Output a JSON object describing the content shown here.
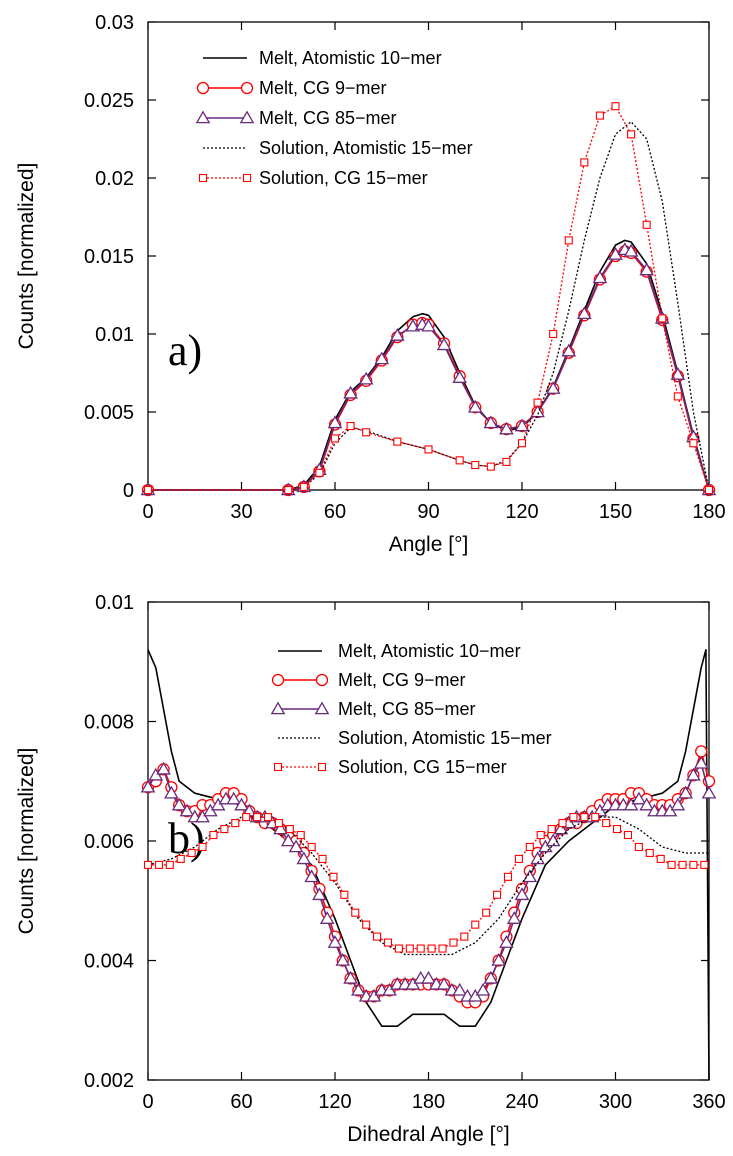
{
  "chart_data": [
    {
      "type": "line",
      "panel_label": "a)",
      "xlabel": "Angle [°]",
      "ylabel": "Counts [normalized]",
      "xlim": [
        0,
        180
      ],
      "ylim": [
        0,
        0.03
      ],
      "xticks": [
        0,
        30,
        60,
        90,
        120,
        150,
        180
      ],
      "yticks": [
        0,
        0.005,
        0.01,
        0.015,
        0.02,
        0.025,
        0.03
      ],
      "ytick_labels": [
        "0",
        "0.005",
        "0.01",
        "0.015",
        "0.02",
        "0.025",
        "0.03"
      ],
      "grid": false,
      "legend_position": "top-left",
      "series": [
        {
          "name": "Melt, Atomistic 10−mer",
          "color": "#000000",
          "style": "solid",
          "marker": "none",
          "x": [
            0,
            45,
            50,
            55,
            60,
            65,
            70,
            75,
            80,
            85,
            88,
            90,
            95,
            100,
            105,
            110,
            115,
            120,
            125,
            130,
            135,
            140,
            145,
            150,
            153,
            155,
            160,
            165,
            170,
            175,
            180
          ],
          "y": [
            0,
            0,
            0.0003,
            0.0015,
            0.0045,
            0.0063,
            0.0072,
            0.0085,
            0.0102,
            0.0111,
            0.0113,
            0.0112,
            0.0098,
            0.0075,
            0.0054,
            0.0043,
            0.0038,
            0.004,
            0.005,
            0.0066,
            0.009,
            0.0115,
            0.014,
            0.0157,
            0.016,
            0.0159,
            0.0145,
            0.0113,
            0.0075,
            0.0035,
            0
          ]
        },
        {
          "name": "Melt, CG 9−mer",
          "color": "#ff0000",
          "style": "solid",
          "marker": "circle",
          "x": [
            0,
            45,
            50,
            55,
            60,
            65,
            70,
            75,
            80,
            85,
            88,
            90,
            95,
            100,
            105,
            110,
            115,
            120,
            125,
            130,
            135,
            140,
            145,
            150,
            153,
            155,
            160,
            165,
            170,
            175,
            180
          ],
          "y": [
            0,
            0,
            0.0002,
            0.0012,
            0.0042,
            0.0061,
            0.007,
            0.0083,
            0.0098,
            0.0106,
            0.0107,
            0.0106,
            0.0094,
            0.0073,
            0.0053,
            0.0043,
            0.0039,
            0.0041,
            0.005,
            0.0065,
            0.0088,
            0.0112,
            0.0135,
            0.015,
            0.0153,
            0.0152,
            0.014,
            0.0109,
            0.0073,
            0.0033,
            0
          ]
        },
        {
          "name": "Melt, CG 85−mer",
          "color": "#6a2a7a",
          "style": "solid",
          "marker": "triangle",
          "x": [
            0,
            45,
            50,
            55,
            60,
            65,
            70,
            75,
            80,
            85,
            88,
            90,
            95,
            100,
            105,
            110,
            115,
            120,
            125,
            130,
            135,
            140,
            145,
            150,
            153,
            155,
            160,
            165,
            170,
            175,
            180
          ],
          "y": [
            0,
            0,
            0.0002,
            0.0013,
            0.0043,
            0.0062,
            0.0071,
            0.0084,
            0.0099,
            0.0105,
            0.0106,
            0.0105,
            0.0093,
            0.0072,
            0.0053,
            0.0043,
            0.0039,
            0.0041,
            0.005,
            0.0065,
            0.0089,
            0.0113,
            0.0136,
            0.0151,
            0.0154,
            0.0153,
            0.0141,
            0.011,
            0.0074,
            0.0034,
            0
          ]
        },
        {
          "name": "Solution, Atomistic 15−mer",
          "color": "#000000",
          "style": "dotted",
          "marker": "none",
          "x": [
            0,
            45,
            50,
            55,
            60,
            65,
            70,
            80,
            90,
            100,
            105,
            110,
            115,
            120,
            125,
            130,
            135,
            140,
            145,
            150,
            155,
            160,
            165,
            170,
            175,
            180
          ],
          "y": [
            0,
            0,
            0.0002,
            0.001,
            0.003,
            0.004,
            0.0038,
            0.0031,
            0.0026,
            0.0019,
            0.0016,
            0.0015,
            0.0019,
            0.003,
            0.0048,
            0.0075,
            0.0115,
            0.016,
            0.02,
            0.0228,
            0.0236,
            0.0225,
            0.0185,
            0.012,
            0.005,
            0
          ]
        },
        {
          "name": "Solution, CG 15−mer",
          "color": "#ff0000",
          "style": "dotted",
          "marker": "square",
          "x": [
            0,
            45,
            50,
            55,
            60,
            65,
            70,
            80,
            90,
            100,
            105,
            110,
            115,
            120,
            125,
            130,
            135,
            140,
            145,
            150,
            155,
            160,
            165,
            170,
            175,
            180
          ],
          "y": [
            0,
            0,
            0.0002,
            0.0011,
            0.0033,
            0.0041,
            0.0037,
            0.0031,
            0.0026,
            0.0019,
            0.0016,
            0.0015,
            0.0018,
            0.003,
            0.0056,
            0.01,
            0.016,
            0.021,
            0.024,
            0.0246,
            0.0228,
            0.017,
            0.011,
            0.006,
            0.003,
            0
          ]
        }
      ]
    },
    {
      "type": "line",
      "panel_label": "b)",
      "xlabel": "Dihedral Angle [°]",
      "ylabel": "Counts [normalized]",
      "xlim": [
        0,
        360
      ],
      "ylim": [
        0.002,
        0.01
      ],
      "xticks": [
        0,
        60,
        120,
        180,
        240,
        300,
        360
      ],
      "yticks": [
        0.002,
        0.004,
        0.006,
        0.008,
        0.01
      ],
      "ytick_labels": [
        "0.002",
        "0.004",
        "0.006",
        "0.008",
        "0.01"
      ],
      "grid": false,
      "legend_position": "top-right",
      "series": [
        {
          "name": "Melt, Atomistic 10−mer",
          "color": "#000000",
          "style": "solid",
          "marker": "none",
          "x": [
            0,
            5,
            10,
            15,
            20,
            30,
            45,
            60,
            75,
            90,
            105,
            120,
            130,
            140,
            150,
            160,
            170,
            180,
            190,
            200,
            210,
            220,
            230,
            240,
            255,
            270,
            285,
            300,
            315,
            330,
            340,
            345,
            350,
            355,
            358,
            360
          ],
          "y": [
            0.0092,
            0.0089,
            0.0082,
            0.0075,
            0.007,
            0.0068,
            0.0067,
            0.0066,
            0.0063,
            0.006,
            0.0056,
            0.0047,
            0.004,
            0.0033,
            0.0029,
            0.0029,
            0.0031,
            0.0031,
            0.0031,
            0.0029,
            0.0029,
            0.0033,
            0.004,
            0.0047,
            0.0056,
            0.006,
            0.0063,
            0.0066,
            0.0067,
            0.0068,
            0.007,
            0.0075,
            0.0082,
            0.0089,
            0.0092,
            0.002
          ]
        },
        {
          "name": "Melt, CG 9−mer",
          "color": "#ff0000",
          "style": "solid",
          "marker": "circle",
          "x": [
            0,
            5,
            10,
            15,
            20,
            25,
            30,
            35,
            40,
            45,
            50,
            55,
            60,
            65,
            70,
            75,
            80,
            85,
            90,
            95,
            100,
            105,
            110,
            115,
            120,
            125,
            130,
            135,
            140,
            145,
            150,
            155,
            160,
            165,
            170,
            175,
            180,
            185,
            190,
            195,
            200,
            205,
            210,
            215,
            220,
            225,
            230,
            235,
            240,
            245,
            250,
            255,
            260,
            265,
            270,
            275,
            280,
            285,
            290,
            295,
            300,
            305,
            310,
            315,
            320,
            325,
            330,
            335,
            340,
            345,
            350,
            355,
            360
          ],
          "y": [
            0.0069,
            0.007,
            0.0072,
            0.0069,
            0.0066,
            0.0065,
            0.0065,
            0.0066,
            0.0066,
            0.0067,
            0.0068,
            0.0068,
            0.0067,
            0.0065,
            0.0064,
            0.0063,
            0.0063,
            0.0062,
            0.0061,
            0.006,
            0.0058,
            0.0055,
            0.0052,
            0.0048,
            0.0044,
            0.004,
            0.0037,
            0.0035,
            0.0034,
            0.0034,
            0.0035,
            0.0035,
            0.0036,
            0.0036,
            0.0036,
            0.0036,
            0.0036,
            0.0036,
            0.0036,
            0.0035,
            0.0034,
            0.0033,
            0.0033,
            0.0034,
            0.0037,
            0.004,
            0.0044,
            0.0048,
            0.0052,
            0.0055,
            0.0058,
            0.006,
            0.0061,
            0.0062,
            0.0063,
            0.0063,
            0.0064,
            0.0065,
            0.0066,
            0.0067,
            0.0067,
            0.0067,
            0.0068,
            0.0068,
            0.0067,
            0.0066,
            0.0066,
            0.0066,
            0.0067,
            0.0068,
            0.0071,
            0.0075,
            0.007
          ]
        },
        {
          "name": "Melt, CG 85−mer",
          "color": "#6a2a7a",
          "style": "solid",
          "marker": "triangle",
          "x": [
            0,
            5,
            10,
            15,
            20,
            25,
            30,
            35,
            40,
            45,
            50,
            55,
            60,
            65,
            70,
            75,
            80,
            85,
            90,
            95,
            100,
            105,
            110,
            115,
            120,
            125,
            130,
            135,
            140,
            145,
            150,
            155,
            160,
            165,
            170,
            175,
            180,
            185,
            190,
            195,
            200,
            205,
            210,
            215,
            220,
            225,
            230,
            235,
            240,
            245,
            250,
            255,
            260,
            265,
            270,
            275,
            280,
            285,
            290,
            295,
            300,
            305,
            310,
            315,
            320,
            325,
            330,
            335,
            340,
            345,
            350,
            355,
            360
          ],
          "y": [
            0.0069,
            0.0071,
            0.0072,
            0.0068,
            0.0066,
            0.0065,
            0.0064,
            0.0064,
            0.0065,
            0.0066,
            0.0067,
            0.0067,
            0.0066,
            0.0065,
            0.0064,
            0.0064,
            0.0063,
            0.0062,
            0.006,
            0.0059,
            0.0057,
            0.0054,
            0.0051,
            0.0047,
            0.0043,
            0.004,
            0.0037,
            0.0035,
            0.0034,
            0.0034,
            0.0035,
            0.0035,
            0.0036,
            0.0036,
            0.0036,
            0.0037,
            0.0037,
            0.0036,
            0.0036,
            0.0035,
            0.0035,
            0.0034,
            0.0034,
            0.0035,
            0.0037,
            0.004,
            0.0043,
            0.0047,
            0.0051,
            0.0054,
            0.0057,
            0.0059,
            0.006,
            0.0062,
            0.0063,
            0.0064,
            0.0064,
            0.0064,
            0.0065,
            0.0066,
            0.0066,
            0.0066,
            0.0066,
            0.0067,
            0.0066,
            0.0065,
            0.0065,
            0.0065,
            0.0066,
            0.0068,
            0.0071,
            0.0073,
            0.0068
          ]
        },
        {
          "name": "Solution, Atomistic 15−mer",
          "color": "#000000",
          "style": "dotted",
          "marker": "none",
          "x": [
            0,
            15,
            30,
            45,
            60,
            75,
            90,
            105,
            120,
            135,
            150,
            165,
            180,
            195,
            210,
            225,
            240,
            255,
            270,
            285,
            300,
            315,
            330,
            345,
            360
          ],
          "y": [
            0.0056,
            0.0057,
            0.0059,
            0.0062,
            0.0064,
            0.0064,
            0.0062,
            0.0058,
            0.0053,
            0.0047,
            0.0043,
            0.0041,
            0.0041,
            0.0041,
            0.0043,
            0.0047,
            0.0053,
            0.0058,
            0.0062,
            0.0064,
            0.0064,
            0.0062,
            0.0059,
            0.0058,
            0.0058
          ]
        },
        {
          "name": "Solution, CG 15−mer",
          "color": "#ff0000",
          "style": "dotted",
          "marker": "square",
          "x": [
            0,
            7,
            14,
            21,
            28,
            35,
            42,
            49,
            56,
            63,
            70,
            77,
            84,
            91,
            98,
            105,
            112,
            119,
            126,
            133,
            140,
            147,
            154,
            161,
            168,
            175,
            182,
            189,
            196,
            203,
            210,
            217,
            224,
            231,
            238,
            245,
            252,
            259,
            266,
            273,
            280,
            287,
            294,
            301,
            308,
            315,
            322,
            329,
            336,
            343,
            350,
            357
          ],
          "y": [
            0.0056,
            0.0056,
            0.0056,
            0.0057,
            0.0058,
            0.0059,
            0.0061,
            0.0062,
            0.0063,
            0.0064,
            0.0064,
            0.0064,
            0.0063,
            0.0062,
            0.0061,
            0.0059,
            0.0057,
            0.0054,
            0.0051,
            0.0048,
            0.0046,
            0.0044,
            0.0043,
            0.0042,
            0.0042,
            0.0042,
            0.0042,
            0.0042,
            0.0043,
            0.0044,
            0.0046,
            0.0048,
            0.0051,
            0.0054,
            0.0057,
            0.0059,
            0.0061,
            0.0062,
            0.0063,
            0.0064,
            0.0064,
            0.0064,
            0.0063,
            0.0062,
            0.0061,
            0.0059,
            0.0058,
            0.0057,
            0.0056,
            0.0056,
            0.0056,
            0.0056
          ]
        }
      ]
    }
  ]
}
